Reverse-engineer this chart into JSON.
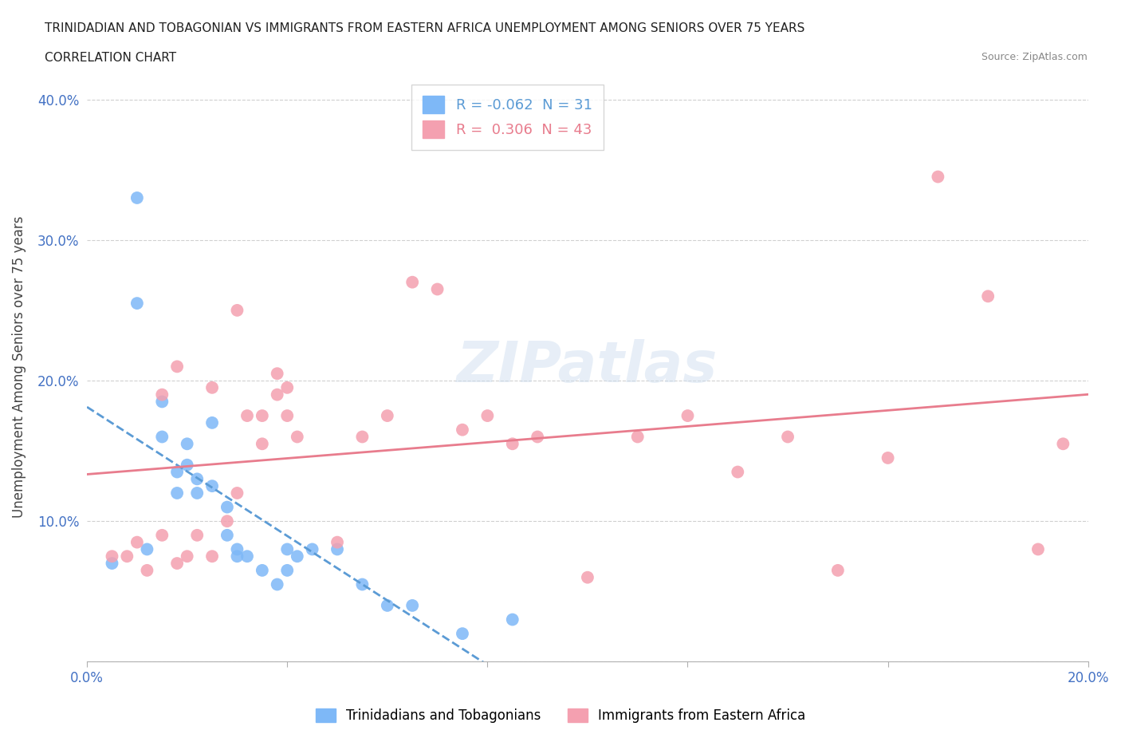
{
  "title_line1": "TRINIDADIAN AND TOBAGONIAN VS IMMIGRANTS FROM EASTERN AFRICA UNEMPLOYMENT AMONG SENIORS OVER 75 YEARS",
  "title_line2": "CORRELATION CHART",
  "source": "Source: ZipAtlas.com",
  "ylabel": "Unemployment Among Seniors over 75 years",
  "xlim": [
    0.0,
    0.2
  ],
  "ylim": [
    0.0,
    0.42
  ],
  "xticks": [
    0.0,
    0.04,
    0.08,
    0.12,
    0.16,
    0.2
  ],
  "yticks": [
    0.0,
    0.1,
    0.2,
    0.3,
    0.4
  ],
  "legend_blue_R": "-0.062",
  "legend_blue_N": "31",
  "legend_pink_R": "0.306",
  "legend_pink_N": "43",
  "blue_color": "#7eb8f7",
  "pink_color": "#f4a0b0",
  "trend_blue_color": "#5b9bd5",
  "trend_pink_color": "#e87c8d",
  "watermark": "ZIPatlas",
  "blue_scatter_x": [
    0.005,
    0.01,
    0.01,
    0.012,
    0.015,
    0.015,
    0.018,
    0.018,
    0.02,
    0.02,
    0.022,
    0.022,
    0.025,
    0.025,
    0.028,
    0.028,
    0.03,
    0.03,
    0.032,
    0.035,
    0.038,
    0.04,
    0.04,
    0.042,
    0.045,
    0.05,
    0.055,
    0.06,
    0.065,
    0.075,
    0.085
  ],
  "blue_scatter_y": [
    0.07,
    0.33,
    0.255,
    0.08,
    0.16,
    0.185,
    0.12,
    0.135,
    0.14,
    0.155,
    0.12,
    0.13,
    0.125,
    0.17,
    0.09,
    0.11,
    0.075,
    0.08,
    0.075,
    0.065,
    0.055,
    0.065,
    0.08,
    0.075,
    0.08,
    0.08,
    0.055,
    0.04,
    0.04,
    0.02,
    0.03
  ],
  "pink_scatter_x": [
    0.005,
    0.008,
    0.01,
    0.012,
    0.015,
    0.015,
    0.018,
    0.018,
    0.02,
    0.022,
    0.025,
    0.025,
    0.028,
    0.03,
    0.03,
    0.032,
    0.035,
    0.035,
    0.038,
    0.038,
    0.04,
    0.04,
    0.042,
    0.05,
    0.055,
    0.06,
    0.065,
    0.07,
    0.075,
    0.08,
    0.085,
    0.09,
    0.1,
    0.11,
    0.12,
    0.13,
    0.14,
    0.15,
    0.16,
    0.17,
    0.18,
    0.19,
    0.195
  ],
  "pink_scatter_y": [
    0.075,
    0.075,
    0.085,
    0.065,
    0.09,
    0.19,
    0.07,
    0.21,
    0.075,
    0.09,
    0.075,
    0.195,
    0.1,
    0.12,
    0.25,
    0.175,
    0.155,
    0.175,
    0.19,
    0.205,
    0.175,
    0.195,
    0.16,
    0.085,
    0.16,
    0.175,
    0.27,
    0.265,
    0.165,
    0.175,
    0.155,
    0.16,
    0.06,
    0.16,
    0.175,
    0.135,
    0.16,
    0.065,
    0.145,
    0.345,
    0.26,
    0.08,
    0.155
  ]
}
